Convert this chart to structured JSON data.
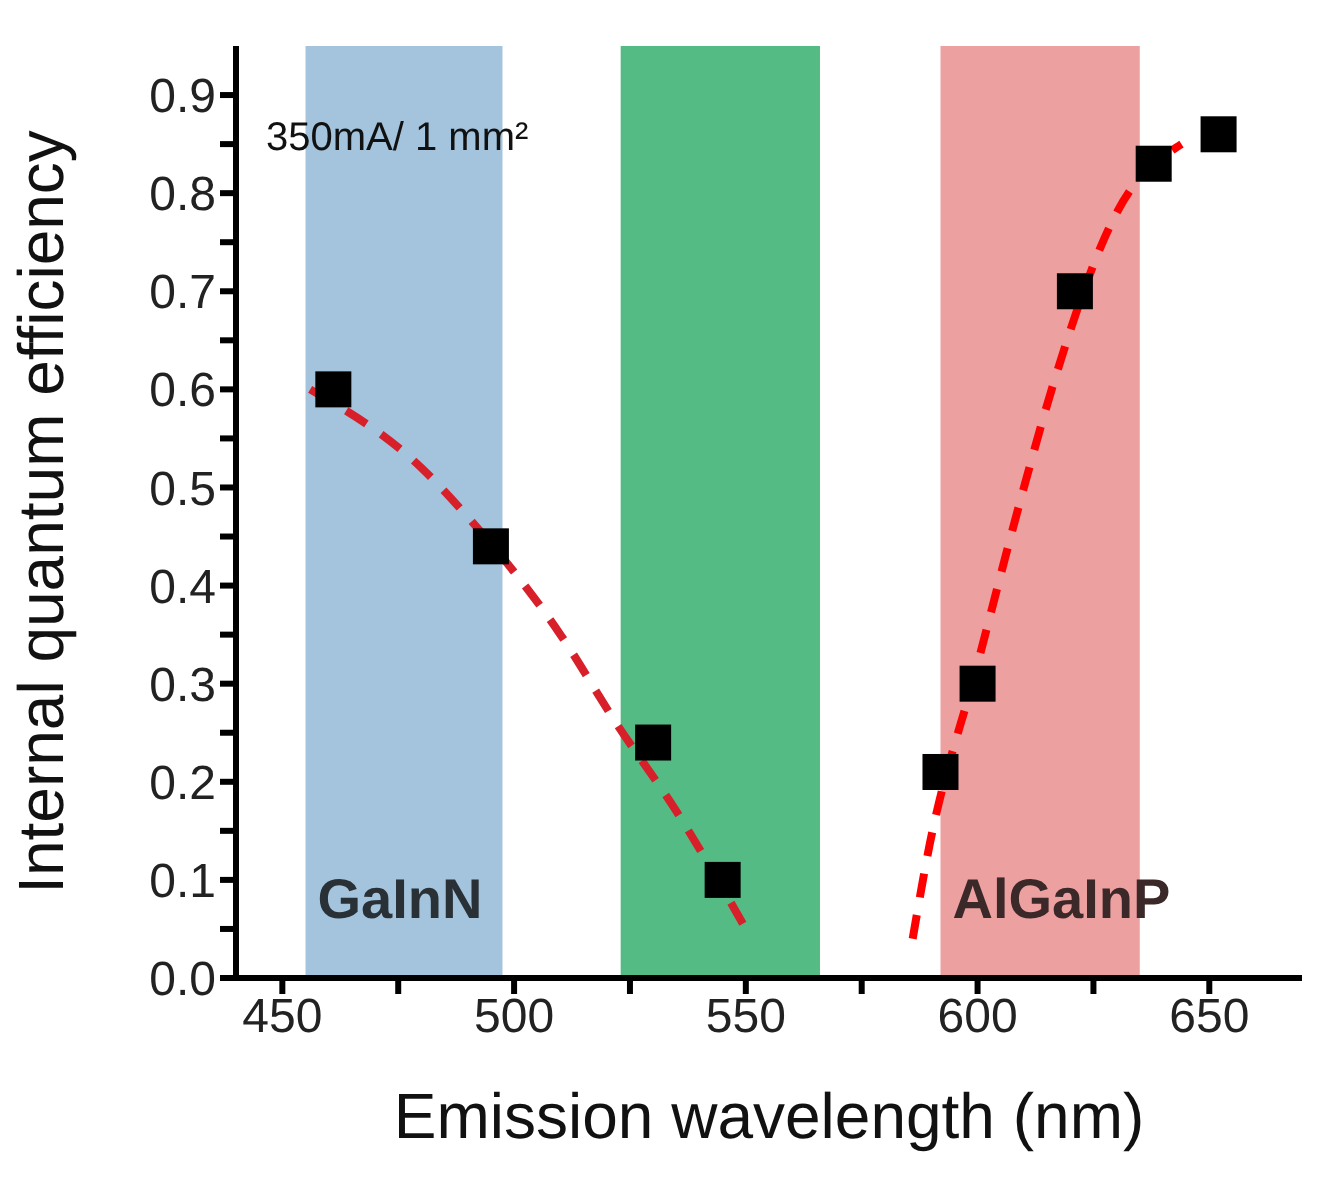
{
  "chart_data": {
    "type": "scatter",
    "xlabel": "Emission wavelength (nm)",
    "ylabel": "Internal quantum efficiency",
    "annotations": [
      "350mA/ 1 mm²"
    ],
    "xlim": [
      440,
      670
    ],
    "xticks": [
      450,
      {
        "value": 475,
        "label": null
      },
      500,
      {
        "value": 525,
        "label": null
      },
      550,
      {
        "value": 575,
        "label": null
      },
      600,
      {
        "value": 625,
        "label": null
      },
      650
    ],
    "ylim": [
      0,
      0.95
    ],
    "yticks": [
      {
        "value": 0,
        "label": "0.0"
      },
      {
        "value": 0.05,
        "label": null
      },
      0.1,
      {
        "value": 0.15,
        "label": null
      },
      0.2,
      {
        "value": 0.25,
        "label": null
      },
      0.3,
      {
        "value": 0.35,
        "label": null
      },
      0.4,
      {
        "value": 0.45,
        "label": null
      },
      0.5,
      {
        "value": 0.55,
        "label": null
      },
      0.6,
      {
        "value": 0.65,
        "label": null
      },
      0.7,
      {
        "value": 0.75,
        "label": null
      },
      0.8,
      {
        "value": 0.85,
        "label": null
      },
      0.9
    ],
    "grid": false,
    "legend": false,
    "marker": "square",
    "bands": [
      {
        "axis": "x",
        "from": 455,
        "to": 497.5,
        "label": "GaInN",
        "color": "#a3c4dc"
      },
      {
        "axis": "x",
        "from": 523,
        "to": 566,
        "color": "#55bb85"
      },
      {
        "axis": "x",
        "from": 592,
        "to": 635,
        "label": "AlGaInP",
        "color": "#eda0a0"
      }
    ],
    "series": [
      {
        "type": "scatter",
        "color": "#000000",
        "x": [
          461,
          495,
          530,
          545,
          592,
          600,
          621,
          638,
          652
        ],
        "values": [
          0.6,
          0.44,
          0.24,
          0.1,
          0.21,
          0.3,
          0.7,
          0.83,
          0.86
        ]
      },
      {
        "type": "line",
        "color": "#d8202a",
        "line_style": "dashed",
        "marker": "none",
        "x": [
          456,
          480,
          490,
          510,
          522,
          535,
          550
        ],
        "values": [
          0.6,
          0.52,
          0.47,
          0.35,
          0.26,
          0.17,
          0.05
        ]
      },
      {
        "type": "line",
        "color": "#ff0000",
        "line_style": "dashed",
        "marker": "none",
        "x": [
          586,
          589,
          600,
          610,
          616,
          630,
          644
        ],
        "values": [
          0.04,
          0.12,
          0.32,
          0.5,
          0.6,
          0.78,
          0.85
        ]
      }
    ]
  }
}
